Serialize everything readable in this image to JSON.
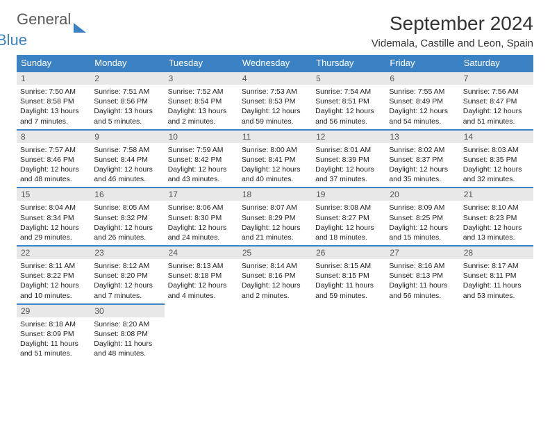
{
  "logo": {
    "part1": "General",
    "part2": "Blue"
  },
  "title": "September 2024",
  "location": "Videmala, Castille and Leon, Spain",
  "headers": [
    "Sunday",
    "Monday",
    "Tuesday",
    "Wednesday",
    "Thursday",
    "Friday",
    "Saturday"
  ],
  "colors": {
    "brand": "#3b82c4",
    "bg": "#ffffff",
    "daybar": "#e8e8e8"
  },
  "font": {
    "title_size": 28,
    "header_size": 13,
    "body_size": 10.5
  },
  "days": [
    {
      "n": 1,
      "sr": "7:50 AM",
      "ss": "8:58 PM",
      "dl": "13 hours and 7 minutes."
    },
    {
      "n": 2,
      "sr": "7:51 AM",
      "ss": "8:56 PM",
      "dl": "13 hours and 5 minutes."
    },
    {
      "n": 3,
      "sr": "7:52 AM",
      "ss": "8:54 PM",
      "dl": "13 hours and 2 minutes."
    },
    {
      "n": 4,
      "sr": "7:53 AM",
      "ss": "8:53 PM",
      "dl": "12 hours and 59 minutes."
    },
    {
      "n": 5,
      "sr": "7:54 AM",
      "ss": "8:51 PM",
      "dl": "12 hours and 56 minutes."
    },
    {
      "n": 6,
      "sr": "7:55 AM",
      "ss": "8:49 PM",
      "dl": "12 hours and 54 minutes."
    },
    {
      "n": 7,
      "sr": "7:56 AM",
      "ss": "8:47 PM",
      "dl": "12 hours and 51 minutes."
    },
    {
      "n": 8,
      "sr": "7:57 AM",
      "ss": "8:46 PM",
      "dl": "12 hours and 48 minutes."
    },
    {
      "n": 9,
      "sr": "7:58 AM",
      "ss": "8:44 PM",
      "dl": "12 hours and 46 minutes."
    },
    {
      "n": 10,
      "sr": "7:59 AM",
      "ss": "8:42 PM",
      "dl": "12 hours and 43 minutes."
    },
    {
      "n": 11,
      "sr": "8:00 AM",
      "ss": "8:41 PM",
      "dl": "12 hours and 40 minutes."
    },
    {
      "n": 12,
      "sr": "8:01 AM",
      "ss": "8:39 PM",
      "dl": "12 hours and 37 minutes."
    },
    {
      "n": 13,
      "sr": "8:02 AM",
      "ss": "8:37 PM",
      "dl": "12 hours and 35 minutes."
    },
    {
      "n": 14,
      "sr": "8:03 AM",
      "ss": "8:35 PM",
      "dl": "12 hours and 32 minutes."
    },
    {
      "n": 15,
      "sr": "8:04 AM",
      "ss": "8:34 PM",
      "dl": "12 hours and 29 minutes."
    },
    {
      "n": 16,
      "sr": "8:05 AM",
      "ss": "8:32 PM",
      "dl": "12 hours and 26 minutes."
    },
    {
      "n": 17,
      "sr": "8:06 AM",
      "ss": "8:30 PM",
      "dl": "12 hours and 24 minutes."
    },
    {
      "n": 18,
      "sr": "8:07 AM",
      "ss": "8:29 PM",
      "dl": "12 hours and 21 minutes."
    },
    {
      "n": 19,
      "sr": "8:08 AM",
      "ss": "8:27 PM",
      "dl": "12 hours and 18 minutes."
    },
    {
      "n": 20,
      "sr": "8:09 AM",
      "ss": "8:25 PM",
      "dl": "12 hours and 15 minutes."
    },
    {
      "n": 21,
      "sr": "8:10 AM",
      "ss": "8:23 PM",
      "dl": "12 hours and 13 minutes."
    },
    {
      "n": 22,
      "sr": "8:11 AM",
      "ss": "8:22 PM",
      "dl": "12 hours and 10 minutes."
    },
    {
      "n": 23,
      "sr": "8:12 AM",
      "ss": "8:20 PM",
      "dl": "12 hours and 7 minutes."
    },
    {
      "n": 24,
      "sr": "8:13 AM",
      "ss": "8:18 PM",
      "dl": "12 hours and 4 minutes."
    },
    {
      "n": 25,
      "sr": "8:14 AM",
      "ss": "8:16 PM",
      "dl": "12 hours and 2 minutes."
    },
    {
      "n": 26,
      "sr": "8:15 AM",
      "ss": "8:15 PM",
      "dl": "11 hours and 59 minutes."
    },
    {
      "n": 27,
      "sr": "8:16 AM",
      "ss": "8:13 PM",
      "dl": "11 hours and 56 minutes."
    },
    {
      "n": 28,
      "sr": "8:17 AM",
      "ss": "8:11 PM",
      "dl": "11 hours and 53 minutes."
    },
    {
      "n": 29,
      "sr": "8:18 AM",
      "ss": "8:09 PM",
      "dl": "11 hours and 51 minutes."
    },
    {
      "n": 30,
      "sr": "8:20 AM",
      "ss": "8:08 PM",
      "dl": "11 hours and 48 minutes."
    }
  ],
  "labels": {
    "sunrise": "Sunrise:",
    "sunset": "Sunset:",
    "daylight": "Daylight:"
  }
}
